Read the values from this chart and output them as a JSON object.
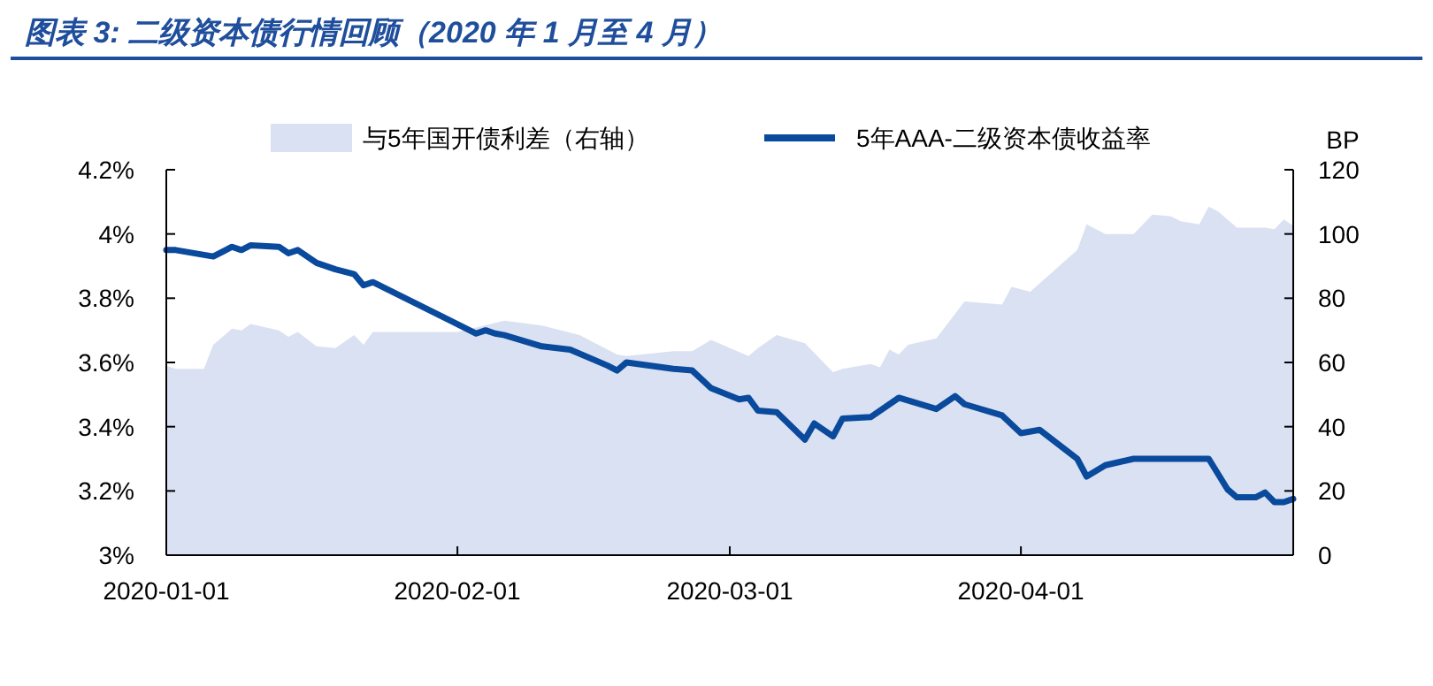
{
  "chart_data": {
    "type": "line",
    "title": "图表 3:  二级资本债行情回顾（2020 年 1 月至 4 月）",
    "y2label": "BP",
    "legend": "top",
    "xlim": [
      "2020-01-01",
      "2020-04-30"
    ],
    "xticks": [
      "2020-01-01",
      "2020-02-01",
      "2020-03-01",
      "2020-04-01"
    ],
    "ylim": [
      3,
      4.2
    ],
    "yticks": [
      {
        "value": 3,
        "label": "3%"
      },
      {
        "value": 3.2,
        "label": "3.2%"
      },
      {
        "value": 3.4,
        "label": "3.4%"
      },
      {
        "value": 3.6,
        "label": "3.6%"
      },
      {
        "value": 3.8,
        "label": "3.8%"
      },
      {
        "value": 4,
        "label": "4%"
      },
      {
        "value": 4.2,
        "label": "4.2%"
      }
    ],
    "y2lim": [
      0,
      120
    ],
    "y2ticks": [
      0,
      20,
      40,
      60,
      80,
      100,
      120
    ],
    "series": [
      {
        "name": "与5年国开债利差（右轴）",
        "type": "area",
        "axis": "y2",
        "color": "#dae1f2",
        "x": [
          "2020-01-01",
          "2020-01-02",
          "2020-01-05",
          "2020-01-06",
          "2020-01-08",
          "2020-01-09",
          "2020-01-10",
          "2020-01-13",
          "2020-01-14",
          "2020-01-15",
          "2020-01-17",
          "2020-01-19",
          "2020-01-21",
          "2020-01-22",
          "2020-01-23",
          "2020-02-01",
          "2020-02-06",
          "2020-02-10",
          "2020-02-14",
          "2020-02-18",
          "2020-02-19",
          "2020-02-24",
          "2020-02-26",
          "2020-02-28",
          "2020-03-03",
          "2020-03-04",
          "2020-03-06",
          "2020-03-09",
          "2020-03-12",
          "2020-03-13",
          "2020-03-16",
          "2020-03-17",
          "2020-03-18",
          "2020-03-19",
          "2020-03-20",
          "2020-03-23",
          "2020-03-26",
          "2020-03-30",
          "2020-03-31",
          "2020-04-02",
          "2020-04-07",
          "2020-04-08",
          "2020-04-10",
          "2020-04-13",
          "2020-04-15",
          "2020-04-17",
          "2020-04-18",
          "2020-04-20",
          "2020-04-21",
          "2020-04-22",
          "2020-04-24",
          "2020-04-27",
          "2020-04-28",
          "2020-04-29",
          "2020-04-30"
        ],
        "values": [
          59,
          58,
          58,
          65.5,
          70.5,
          70,
          72,
          70,
          68,
          69.5,
          65,
          64.5,
          68.5,
          65.5,
          69.5,
          69.5,
          73,
          71.5,
          68.5,
          62.5,
          62,
          63.5,
          63.5,
          67,
          62,
          64.5,
          68.5,
          66,
          57,
          58,
          59.5,
          58.5,
          64,
          62.5,
          65.5,
          67.5,
          79,
          78,
          83.5,
          82,
          95,
          103,
          100,
          100,
          106,
          105.5,
          104,
          103,
          108.5,
          107,
          102,
          102,
          101.5,
          104.5,
          102.5
        ]
      },
      {
        "name": "5年AAA-二级资本债收益率",
        "color": "#0a4a9c",
        "x": [
          "2020-01-01",
          "2020-01-02",
          "2020-01-06",
          "2020-01-08",
          "2020-01-09",
          "2020-01-10",
          "2020-01-13",
          "2020-01-14",
          "2020-01-15",
          "2020-01-17",
          "2020-01-19",
          "2020-01-21",
          "2020-01-22",
          "2020-01-23",
          "2020-02-03",
          "2020-02-04",
          "2020-02-05",
          "2020-02-06",
          "2020-02-10",
          "2020-02-13",
          "2020-02-17",
          "2020-02-18",
          "2020-02-19",
          "2020-02-24",
          "2020-02-26",
          "2020-02-28",
          "2020-03-02",
          "2020-03-03",
          "2020-03-04",
          "2020-03-06",
          "2020-03-09",
          "2020-03-10",
          "2020-03-12",
          "2020-03-13",
          "2020-03-16",
          "2020-03-19",
          "2020-03-23",
          "2020-03-25",
          "2020-03-26",
          "2020-03-30",
          "2020-04-01",
          "2020-04-03",
          "2020-04-07",
          "2020-04-08",
          "2020-04-10",
          "2020-04-13",
          "2020-04-17",
          "2020-04-21",
          "2020-04-23",
          "2020-04-24",
          "2020-04-26",
          "2020-04-27",
          "2020-04-28",
          "2020-04-29",
          "2020-04-30"
        ],
        "values": [
          3.95,
          3.95,
          3.93,
          3.96,
          3.95,
          3.965,
          3.96,
          3.94,
          3.95,
          3.91,
          3.89,
          3.875,
          3.84,
          3.85,
          3.69,
          3.7,
          3.69,
          3.685,
          3.65,
          3.64,
          3.59,
          3.575,
          3.6,
          3.58,
          3.575,
          3.52,
          3.485,
          3.49,
          3.45,
          3.445,
          3.36,
          3.41,
          3.37,
          3.425,
          3.43,
          3.49,
          3.455,
          3.495,
          3.47,
          3.435,
          3.38,
          3.39,
          3.3,
          3.245,
          3.28,
          3.3,
          3.3,
          3.3,
          3.205,
          3.18,
          3.18,
          3.195,
          3.165,
          3.165,
          3.175
        ]
      }
    ]
  }
}
